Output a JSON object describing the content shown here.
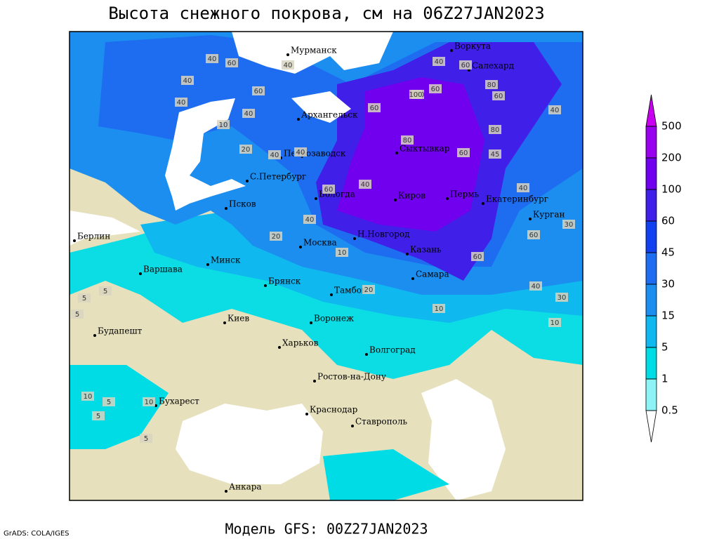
{
  "header": {
    "title": "Высота снежного покрова, см на 06Z27JAN2023"
  },
  "footer": {
    "subtitle": "Модель GFS: 00Z27JAN2023",
    "credit": "GrADS: COLA/IGES"
  },
  "legend": {
    "levels": [
      0.5,
      1,
      5,
      15,
      30,
      45,
      60,
      100,
      200,
      500
    ],
    "colors": [
      "#ffffff",
      "#8cf4f4",
      "#00dce6",
      "#10b8f0",
      "#1c8ef0",
      "#1e6cf0",
      "#1040f0",
      "#4020e8",
      "#7000ee",
      "#9a00f0",
      "#c800f0"
    ]
  },
  "cities": [
    "Мурманск",
    "Воркута",
    "Салехард",
    "Архангельск",
    "Сыктывкар",
    "Петрозаводск",
    "С.Петербург",
    "Вологда",
    "Киров",
    "Пермь",
    "Екатеринбург",
    "Курган",
    "Псков",
    "Берлин",
    "Н.Новгород",
    "Москва",
    "Казань",
    "Варшава",
    "Минск",
    "Самара",
    "Брянск",
    "Тамбов",
    "Воронеж",
    "Киев",
    "Будапешт",
    "Харьков",
    "Волгоград",
    "Ростов-на-Дону",
    "Бухарест",
    "Краснодар",
    "Ставрополь",
    "Анкара"
  ],
  "contour_labels": [
    40,
    60,
    40,
    40,
    40,
    10,
    60,
    40,
    20,
    40,
    40,
    60,
    40,
    100,
    60,
    60,
    80,
    60,
    40,
    80,
    60,
    45,
    40,
    30,
    40,
    60,
    40,
    20,
    10,
    5,
    5,
    5,
    20,
    10,
    30,
    40,
    10,
    10,
    5,
    10,
    5,
    5,
    60,
    80,
    100,
    60
  ]
}
